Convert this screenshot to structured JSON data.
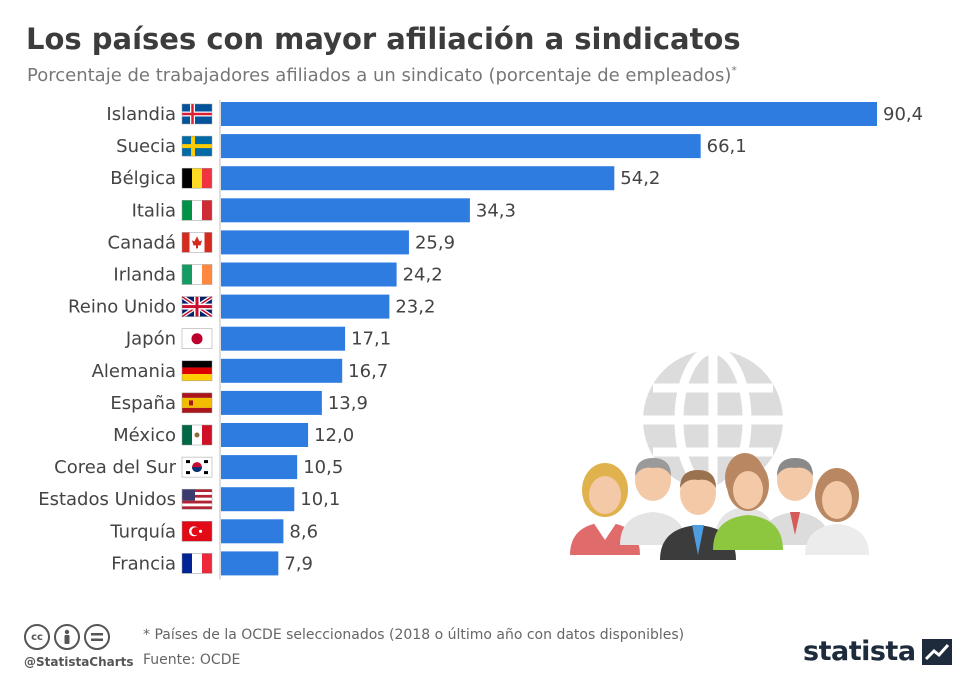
{
  "header": {
    "title": "Los países con mayor afiliación a sindicatos",
    "subtitle": "Porcentaje de trabajadores afiliados a un sindicato (porcentaje de empleados)",
    "subtitle_mark": "*"
  },
  "chart_data": {
    "type": "bar",
    "orientation": "horizontal",
    "categories": [
      "Islandia",
      "Suecia",
      "Bélgica",
      "Italia",
      "Canadá",
      "Irlanda",
      "Reino Unido",
      "Japón",
      "Alemania",
      "España",
      "México",
      "Corea del Sur",
      "Estados Unidos",
      "Turquía",
      "Francia"
    ],
    "values": [
      90.4,
      66.1,
      54.2,
      34.3,
      25.9,
      24.2,
      23.2,
      17.1,
      16.7,
      13.9,
      12.0,
      10.5,
      10.1,
      8.6,
      7.9
    ],
    "value_labels": [
      "90,4",
      "66,1",
      "54,2",
      "34,3",
      "25,9",
      "24,2",
      "23,2",
      "17,1",
      "16,7",
      "13,9",
      "12,0",
      "10,5",
      "10,1",
      "8,6",
      "7,9"
    ],
    "flags": [
      "flag-iceland-icon",
      "flag-sweden-icon",
      "flag-belgium-icon",
      "flag-italy-icon",
      "flag-canada-icon",
      "flag-ireland-icon",
      "flag-uk-icon",
      "flag-japan-icon",
      "flag-germany-icon",
      "flag-spain-icon",
      "flag-mexico-icon",
      "flag-south-korea-icon",
      "flag-usa-icon",
      "flag-turkey-icon",
      "flag-france-icon"
    ],
    "bar_color": "#2f7ce0",
    "xlim": [
      0,
      90.4
    ],
    "grid": false,
    "legend": "none"
  },
  "illustration": {
    "icon": "globe-people-icon"
  },
  "footer": {
    "license_icons": [
      "cc-icon",
      "attribution-icon",
      "no-derivatives-icon"
    ],
    "handle": "@StatistaCharts",
    "note": "* Países de la OCDE seleccionados (2018 o último año con datos disponibles)",
    "source": "Fuente: OCDE",
    "brand": "statista"
  }
}
